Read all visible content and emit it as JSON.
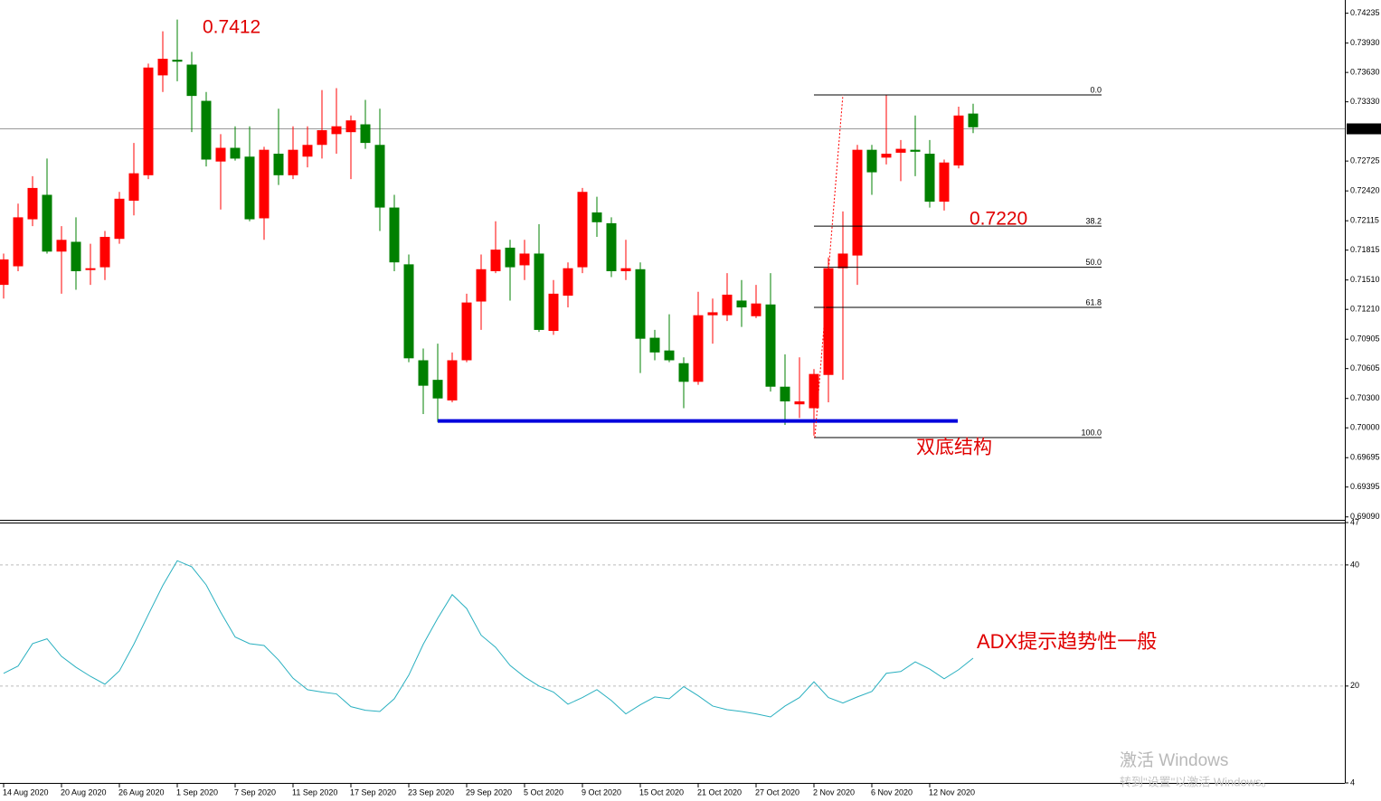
{
  "chart_data": [
    {
      "type": "candlestick",
      "categories": [
        "14 Aug 2020",
        null,
        null,
        null,
        "20 Aug 2020",
        null,
        null,
        null,
        "26 Aug 2020",
        null,
        null,
        null,
        "1 Sep 2020",
        null,
        null,
        null,
        "7 Sep 2020",
        null,
        null,
        null,
        "11 Sep 2020",
        null,
        null,
        null,
        "17 Sep 2020",
        null,
        null,
        null,
        "23 Sep 2020",
        null,
        null,
        null,
        "29 Sep 2020",
        null,
        null,
        null,
        "5 Oct 2020",
        null,
        null,
        null,
        "9 Oct 2020",
        null,
        null,
        null,
        "15 Oct 2020",
        null,
        null,
        null,
        "21 Oct 2020",
        null,
        null,
        null,
        "27 Oct 2020",
        null,
        null,
        null,
        "2 Nov 2020",
        null,
        null,
        null,
        "6 Nov 2020",
        null,
        null,
        null,
        "12 Nov 2020",
        null,
        null,
        null
      ],
      "open": [
        0.7146,
        0.7165,
        0.7213,
        0.7238,
        0.718,
        0.719,
        0.7162,
        0.7164,
        0.7193,
        0.7232,
        0.7258,
        0.736,
        0.7376,
        0.7371,
        0.7334,
        0.7272,
        0.7286,
        0.7277,
        0.7214,
        0.728,
        0.7258,
        0.7277,
        0.7289,
        0.73,
        0.7302,
        0.731,
        0.7289,
        0.7225,
        0.7167,
        0.7069,
        0.7049,
        0.7028,
        0.7069,
        0.7129,
        0.716,
        0.7184,
        0.7166,
        0.7178,
        0.7099,
        0.7135,
        0.7164,
        0.722,
        0.7209,
        0.716,
        0.7162,
        0.7092,
        0.7079,
        0.7066,
        0.7047,
        0.7115,
        0.7115,
        0.713,
        0.7114,
        0.7126,
        0.7042,
        0.7024,
        0.702,
        0.7054,
        0.7163,
        0.7176,
        0.7284,
        0.7276,
        0.7281,
        0.7284,
        0.728,
        0.7231,
        0.7268,
        0.7321
      ],
      "high": [
        0.7178,
        0.7229,
        0.7257,
        0.7275,
        0.7206,
        0.7215,
        0.7188,
        0.7201,
        0.7241,
        0.7291,
        0.7372,
        0.7405,
        0.7417,
        0.7384,
        0.7343,
        0.73,
        0.7308,
        0.7308,
        0.7287,
        0.7326,
        0.7308,
        0.7308,
        0.7345,
        0.7347,
        0.7319,
        0.7335,
        0.7326,
        0.7238,
        0.7177,
        0.7081,
        0.7086,
        0.7077,
        0.7137,
        0.7177,
        0.7211,
        0.7192,
        0.7192,
        0.7208,
        0.7151,
        0.7169,
        0.7245,
        0.7236,
        0.7215,
        0.7192,
        0.7169,
        0.71,
        0.7116,
        0.7072,
        0.7139,
        0.7132,
        0.7158,
        0.7151,
        0.7146,
        0.7158,
        0.7075,
        0.7072,
        0.706,
        0.7174,
        0.7221,
        0.7289,
        0.7289,
        0.734,
        0.7294,
        0.7319,
        0.7294,
        0.7274,
        0.7328,
        0.7331
      ],
      "low": [
        0.7132,
        0.716,
        0.7206,
        0.7178,
        0.7137,
        0.7141,
        0.7146,
        0.7151,
        0.7188,
        0.7217,
        0.7254,
        0.7343,
        0.7354,
        0.7302,
        0.7267,
        0.7223,
        0.7273,
        0.7211,
        0.7192,
        0.7248,
        0.7254,
        0.7266,
        0.7275,
        0.728,
        0.7254,
        0.7285,
        0.7201,
        0.716,
        0.7067,
        0.7014,
        0.7006,
        0.7026,
        0.7067,
        0.71,
        0.7158,
        0.713,
        0.7151,
        0.7098,
        0.7095,
        0.7123,
        0.7158,
        0.7195,
        0.7154,
        0.7151,
        0.7056,
        0.7069,
        0.7067,
        0.702,
        0.7044,
        0.7086,
        0.7109,
        0.7103,
        0.7112,
        0.7037,
        0.7003,
        0.701,
        0.6992,
        0.7026,
        0.7049,
        0.7146,
        0.7238,
        0.7269,
        0.7252,
        0.7257,
        0.7225,
        0.7222,
        0.7265,
        0.7301
      ],
      "close": [
        0.7172,
        0.7215,
        0.7245,
        0.718,
        0.7192,
        0.716,
        0.7163,
        0.7195,
        0.7234,
        0.726,
        0.7368,
        0.7377,
        0.7374,
        0.7339,
        0.7274,
        0.7286,
        0.7275,
        0.7213,
        0.7284,
        0.7258,
        0.7284,
        0.7289,
        0.7304,
        0.7308,
        0.7314,
        0.7291,
        0.7225,
        0.7169,
        0.7071,
        0.7043,
        0.703,
        0.7069,
        0.7128,
        0.7162,
        0.7182,
        0.7164,
        0.7178,
        0.71,
        0.7137,
        0.7163,
        0.7241,
        0.721,
        0.716,
        0.7163,
        0.7091,
        0.7077,
        0.7069,
        0.7047,
        0.7115,
        0.7118,
        0.7136,
        0.7123,
        0.7127,
        0.7042,
        0.7027,
        0.7027,
        0.7055,
        0.7163,
        0.7178,
        0.7284,
        0.7261,
        0.728,
        0.7285,
        0.7282,
        0.7231,
        0.7271,
        0.7319,
        0.7307
      ],
      "up_color": "#ff0000",
      "down_color": "#008000",
      "ylim": [
        0.6906,
        0.7437
      ],
      "yticks": [
        0.74235,
        {
          "value": 0.7393,
          "label": "0.73930"
        },
        {
          "value": 0.7363,
          "label": "0.73630"
        },
        {
          "value": 0.7333,
          "label": "0.73330"
        },
        0.72725,
        {
          "value": 0.7242,
          "label": "0.72420"
        },
        0.72115,
        0.71815,
        {
          "value": 0.7151,
          "label": "0.71510"
        },
        {
          "value": 0.7121,
          "label": "0.71210"
        },
        0.70905,
        0.70605,
        {
          "value": 0.703,
          "label": "0.70300"
        },
        {
          "value": 0.7,
          "label": "0.70000"
        },
        0.69695,
        0.69395,
        {
          "value": 0.6909,
          "label": "0.69090"
        }
      ],
      "current_price": 0.73054,
      "support_level": 0.7007,
      "support_color": "#0000dd",
      "fibonacci": {
        "levels": [
          "0.0",
          "38.2",
          "50.0",
          "61.8",
          "100.0"
        ],
        "prices": [
          0.734,
          0.7206,
          0.7164,
          0.7123,
          0.699
        ]
      },
      "annotations": [
        "0.7412",
        "0.7220",
        "双底结构"
      ]
    },
    {
      "type": "line",
      "name": "ADX",
      "color": "#2ab0c0",
      "values": [
        22.1,
        23.3,
        27.0,
        27.8,
        24.9,
        23.1,
        21.6,
        20.3,
        22.5,
        26.9,
        31.8,
        36.6,
        40.7,
        39.7,
        36.7,
        32.2,
        28.1,
        27.0,
        26.7,
        24.3,
        21.3,
        19.4,
        19.0,
        18.7,
        16.6,
        16.0,
        15.8,
        17.9,
        21.8,
        26.9,
        31.2,
        35.1,
        32.8,
        28.4,
        26.4,
        23.4,
        21.5,
        20.0,
        19.0,
        17.0,
        18.1,
        19.4,
        17.6,
        15.4,
        16.9,
        18.2,
        17.9,
        19.9,
        18.4,
        16.7,
        16.1,
        15.8,
        15.4,
        14.9,
        16.7,
        18.1,
        20.7,
        18.1,
        17.2,
        18.2,
        19.1,
        22.1,
        22.4,
        24.0,
        22.8,
        21.2,
        22.7,
        24.6
      ],
      "ylim": [
        4,
        47
      ],
      "yticks": [
        47,
        40,
        20,
        4
      ],
      "grid_values": [
        40,
        20
      ],
      "annotation": "ADX提示趋势性一般"
    }
  ],
  "watermark": {
    "line1": "激活 Windows",
    "line2": "转到\"设置\"以激活 Windows。"
  }
}
